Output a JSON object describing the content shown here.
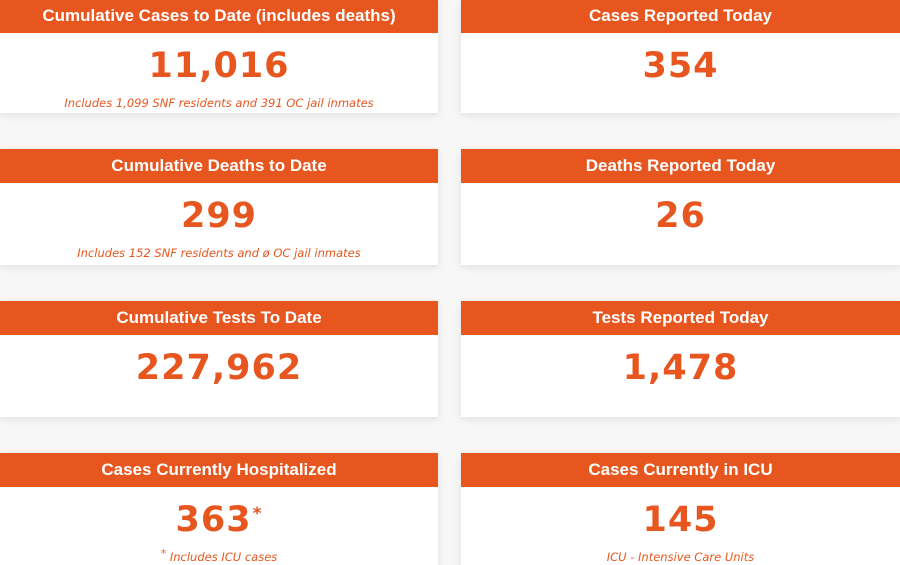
{
  "cards": [
    {
      "title": "Cumulative Cases to Date (includes deaths)",
      "value": "11,016",
      "note": "Includes 1,099 SNF residents and 391 OC jail inmates"
    },
    {
      "title": "Cases Reported Today",
      "value": "354"
    },
    {
      "title": "Cumulative Deaths to Date",
      "value": "299",
      "note": "Includes 152 SNF residents and ø OC jail inmates"
    },
    {
      "title": "Deaths Reported Today",
      "value": "26"
    },
    {
      "title": "Cumulative Tests To Date",
      "value": "227,962"
    },
    {
      "title": "Tests Reported Today",
      "value": "1,478"
    },
    {
      "title": "Cases Currently Hospitalized",
      "value": "363",
      "value_marker": "*",
      "note_marker": "*",
      "note": "Includes ICU cases"
    },
    {
      "title": "Cases Currently in ICU",
      "value": "145",
      "note": "ICU - Intensive Care Units"
    }
  ],
  "colors": {
    "accent": "#e8561f",
    "card_background": "#ffffff",
    "page_background": "#f7f7f7"
  }
}
